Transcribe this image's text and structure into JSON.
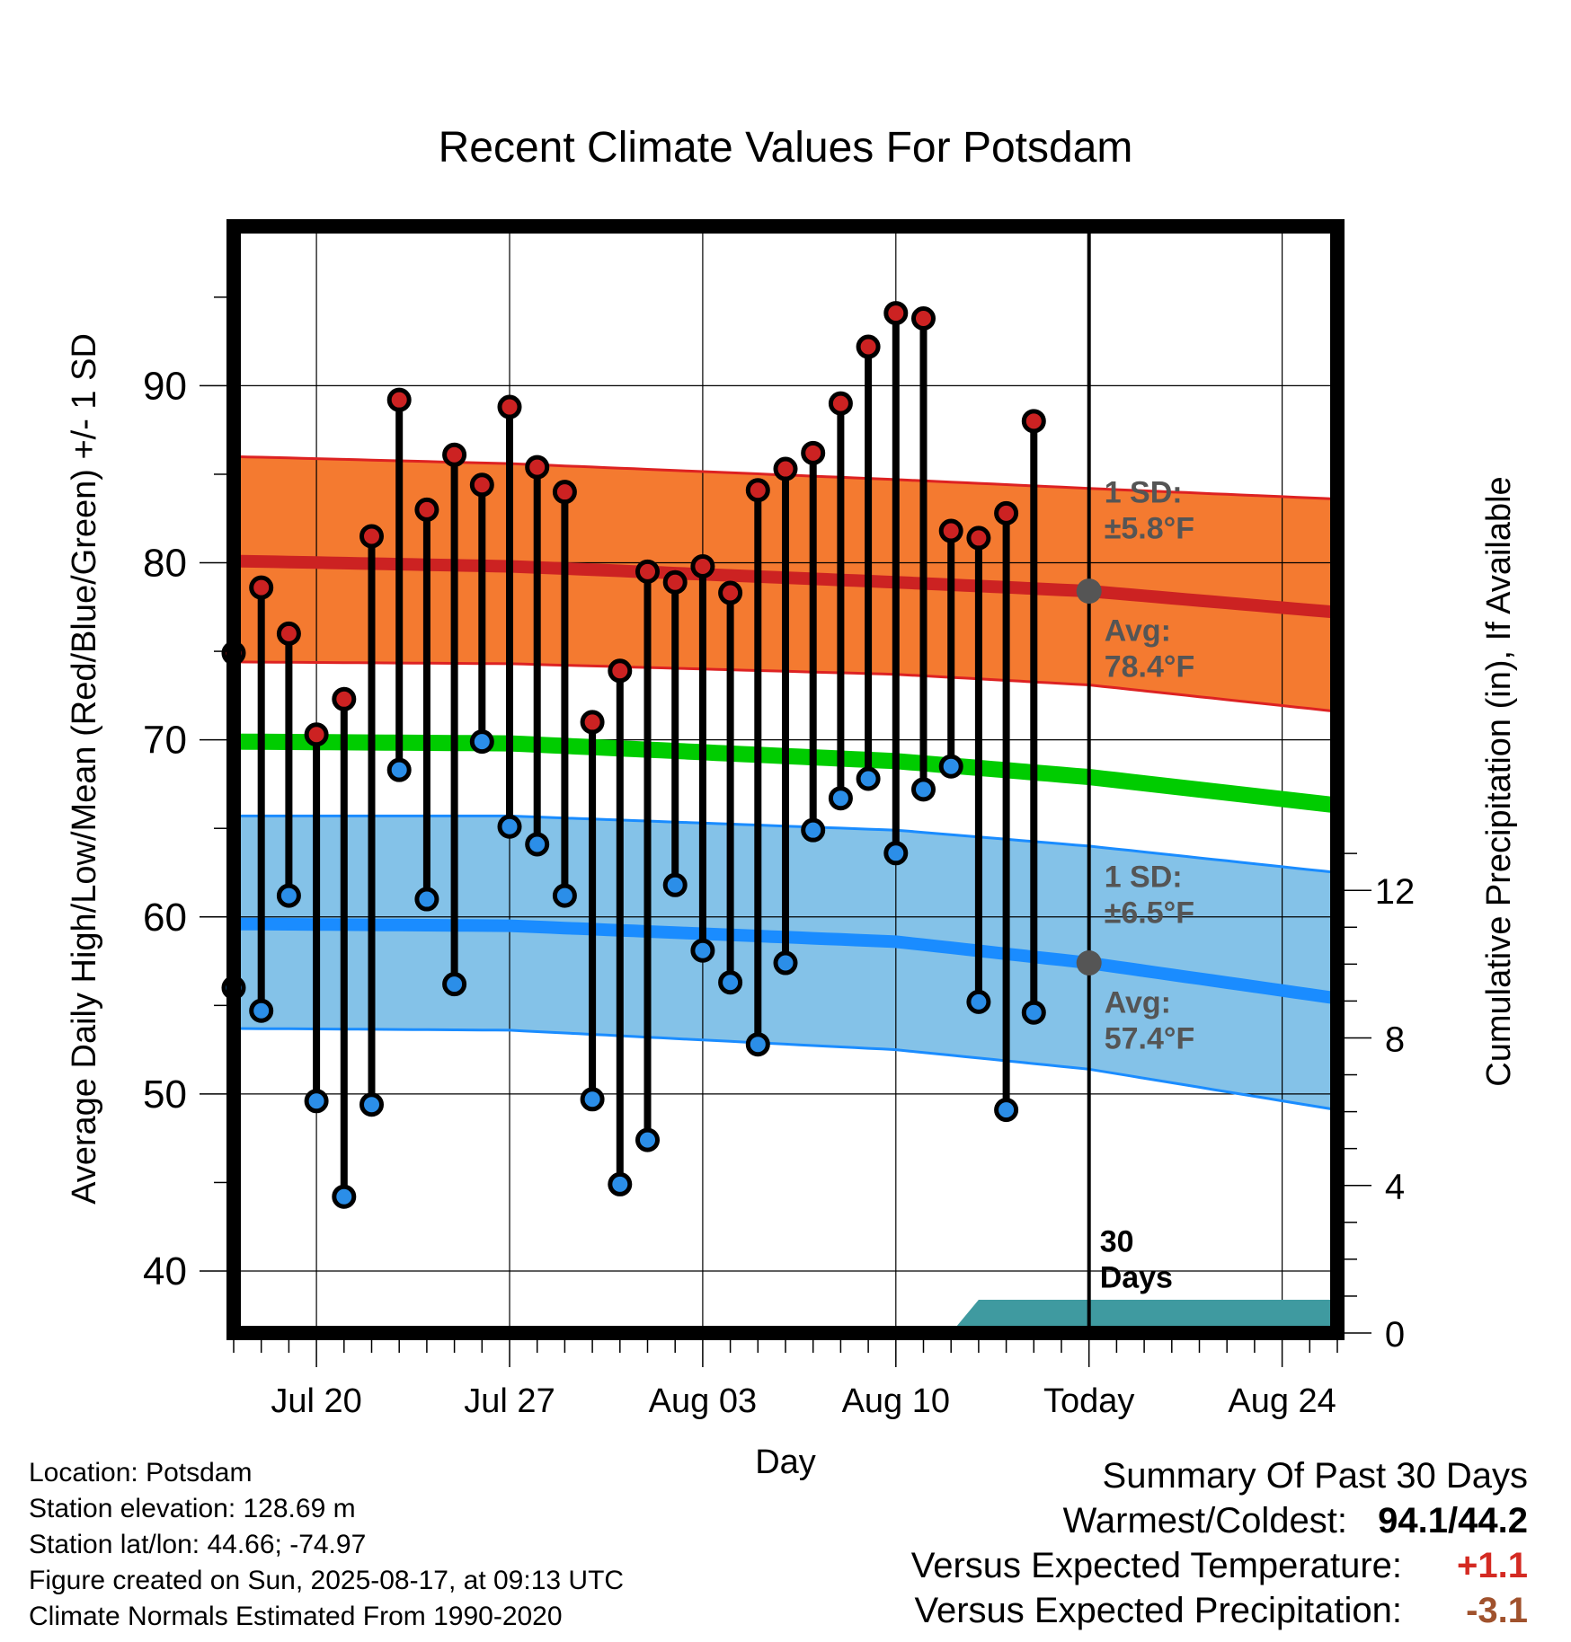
{
  "chart_data": {
    "type": "line",
    "title": "Recent Climate Values For Potsdam",
    "xlabel": "Day",
    "ylabel": "Average Daily High/Low/Mean (Red/Blue/Green) +/- 1 SD",
    "y2label": "Cumulative Precipitation (in), If Available",
    "x_tick_labels": [
      "Jul 20",
      "Jul 27",
      "Aug 03",
      "Aug 10",
      "Today",
      "Aug 24"
    ],
    "x_range": [
      "Jul 17",
      "Aug 26"
    ],
    "ylim": [
      36.5,
      99
    ],
    "y_ticks": [
      40,
      50,
      60,
      70,
      80,
      90
    ],
    "y2lim": [
      0,
      30
    ],
    "y2_ticks": [
      0,
      4,
      8,
      12
    ],
    "grid": true,
    "series": [
      {
        "name": "Daily High",
        "color": "#cc2222",
        "x": [
          "Jul 17",
          "Jul 18",
          "Jul 19",
          "Jul 20",
          "Jul 21",
          "Jul 22",
          "Jul 23",
          "Jul 24",
          "Jul 25",
          "Jul 26",
          "Jul 27",
          "Jul 28",
          "Jul 29",
          "Jul 30",
          "Jul 31",
          "Aug 01",
          "Aug 02",
          "Aug 03",
          "Aug 04",
          "Aug 05",
          "Aug 06",
          "Aug 07",
          "Aug 08",
          "Aug 09",
          "Aug 10",
          "Aug 11",
          "Aug 12",
          "Aug 13",
          "Aug 14",
          "Aug 15",
          "Aug 16"
        ],
        "values": [
          74.9,
          78.6,
          76.0,
          70.3,
          72.3,
          81.5,
          89.2,
          83.0,
          86.1,
          84.4,
          88.8,
          85.4,
          84.0,
          71.0,
          73.9,
          79.5,
          78.9,
          79.8,
          78.3,
          84.1,
          85.3,
          86.2,
          89.0,
          92.2,
          94.1,
          93.8,
          81.8,
          81.4,
          82.8,
          88.0,
          null
        ]
      },
      {
        "name": "Daily Low",
        "color": "#2b8ee8",
        "x": [
          "Jul 17",
          "Jul 18",
          "Jul 19",
          "Jul 20",
          "Jul 21",
          "Jul 22",
          "Jul 23",
          "Jul 24",
          "Jul 25",
          "Jul 26",
          "Jul 27",
          "Jul 28",
          "Jul 29",
          "Jul 30",
          "Jul 31",
          "Aug 01",
          "Aug 02",
          "Aug 03",
          "Aug 04",
          "Aug 05",
          "Aug 06",
          "Aug 07",
          "Aug 08",
          "Aug 09",
          "Aug 10",
          "Aug 11",
          "Aug 12",
          "Aug 13",
          "Aug 14",
          "Aug 15",
          "Aug 16"
        ],
        "values": [
          56.0,
          54.7,
          61.2,
          49.6,
          44.2,
          49.4,
          68.3,
          61.0,
          56.2,
          69.9,
          65.1,
          64.1,
          61.2,
          49.7,
          44.9,
          47.4,
          61.8,
          58.1,
          56.3,
          52.8,
          57.4,
          64.9,
          66.7,
          67.8,
          63.6,
          67.2,
          68.5,
          55.2,
          49.1,
          54.6,
          null
        ]
      },
      {
        "name": "Average High",
        "color": "#cc2222",
        "x": [
          "Jul 17",
          "Jul 27",
          "Aug 10",
          "Aug 17",
          "Aug 26"
        ],
        "values": [
          80.1,
          79.8,
          78.9,
          78.4,
          77.2
        ]
      },
      {
        "name": "Average High +1 SD",
        "color": "#ee2222",
        "x": [
          "Jul 17",
          "Jul 27",
          "Aug 10",
          "Aug 17",
          "Aug 26"
        ],
        "values": [
          86.0,
          85.6,
          84.7,
          84.2,
          83.6
        ]
      },
      {
        "name": "Average High -1 SD",
        "color": "#ee2222",
        "x": [
          "Jul 17",
          "Jul 27",
          "Aug 10",
          "Aug 17",
          "Aug 26"
        ],
        "values": [
          74.4,
          74.3,
          73.7,
          73.1,
          71.6
        ]
      },
      {
        "name": "Average Mean",
        "color": "#00cc00",
        "x": [
          "Jul 17",
          "Jul 27",
          "Aug 10",
          "Aug 17",
          "Aug 26"
        ],
        "values": [
          69.9,
          69.8,
          68.8,
          67.9,
          66.3
        ]
      },
      {
        "name": "Average Low",
        "color": "#1a8cff",
        "x": [
          "Jul 17",
          "Jul 27",
          "Aug 10",
          "Aug 17",
          "Aug 26"
        ],
        "values": [
          59.6,
          59.5,
          58.6,
          57.4,
          55.4
        ]
      },
      {
        "name": "Average Low +1 SD",
        "color": "#1a8cff",
        "x": [
          "Jul 17",
          "Jul 27",
          "Aug 10",
          "Aug 17",
          "Aug 26"
        ],
        "values": [
          65.7,
          65.7,
          64.9,
          64.0,
          62.5
        ]
      },
      {
        "name": "Average Low -1 SD",
        "color": "#1a8cff",
        "x": [
          "Jul 17",
          "Jul 27",
          "Aug 10",
          "Aug 17",
          "Aug 26"
        ],
        "values": [
          53.7,
          53.6,
          52.5,
          51.4,
          49.1
        ]
      },
      {
        "name": "Cumulative Precipitation",
        "color": "#3a9a9e",
        "x": [
          "Aug 12",
          "Aug 13",
          "Aug 17",
          "Aug 26"
        ],
        "values": [
          0,
          0.9,
          0.9,
          0.9
        ]
      }
    ],
    "annotations": {
      "high_sd": [
        "1 SD:",
        "±5.8°F"
      ],
      "high_avg": [
        "Avg:",
        "78.4°F"
      ],
      "low_sd": [
        "1 SD:",
        "±6.5°F"
      ],
      "low_avg": [
        "Avg:",
        "57.4°F"
      ],
      "days": [
        "30",
        "Days"
      ]
    }
  },
  "info": {
    "location": "Location: Potsdam",
    "elevation": "Station elevation: 128.69 m",
    "latlon": "Station lat/lon: 44.66; -74.97",
    "created": "Figure created on Sun, 2025-08-17, at 09:13 UTC",
    "normals": "Climate Normals Estimated From 1990-2020"
  },
  "summary": {
    "title": "Summary Of Past 30 Days",
    "warmest_label": "Warmest/Coldest:",
    "warmest_value": "94.1/44.2",
    "temp_label": "Versus Expected Temperature:",
    "temp_value": "+1.1",
    "temp_color": "#d42a22",
    "precip_label": "Versus Expected Precipitation:",
    "precip_value": "-3.1",
    "precip_color": "#a0522d"
  }
}
